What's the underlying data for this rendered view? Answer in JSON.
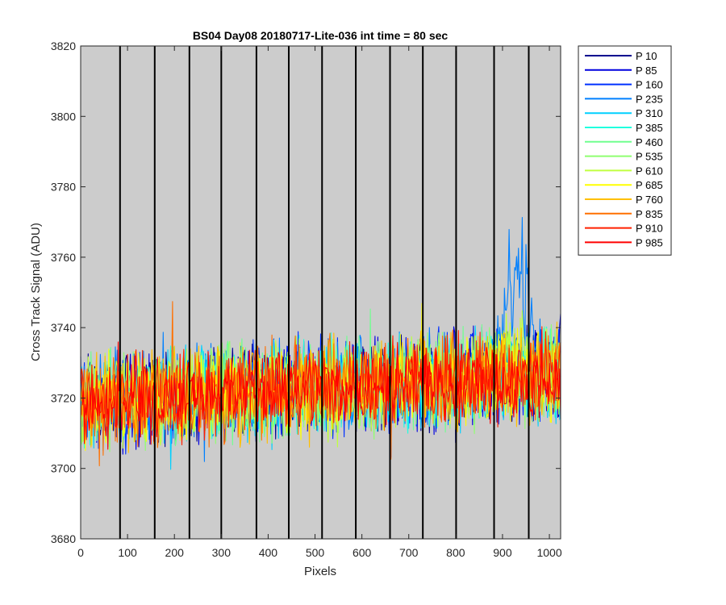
{
  "chart_data": {
    "type": "line",
    "title": "BS04 Day08 20180717-Lite-036 int time = 80 sec",
    "xlabel": "Pixels",
    "ylabel": "Cross Track Signal (ADU)",
    "xlim": [
      0,
      1024
    ],
    "ylim": [
      3680,
      3820
    ],
    "xticks": [
      0,
      100,
      200,
      300,
      400,
      500,
      600,
      700,
      800,
      900,
      1000
    ],
    "yticks": [
      3680,
      3700,
      3720,
      3740,
      3760,
      3780,
      3800,
      3820
    ],
    "background": "#cccccc",
    "grid": false,
    "legend_position": "outside-top-right",
    "segment_boundaries": [
      0,
      84,
      158,
      232,
      300,
      375,
      444,
      515,
      587,
      660,
      730,
      801,
      882,
      956,
      1024
    ],
    "series": [
      {
        "name": "P 10",
        "color": "#00008f",
        "baseline_left": 3718,
        "baseline_right": 3727,
        "noise_amplitude": 10
      },
      {
        "name": "P 85",
        "color": "#0000df",
        "baseline_left": 3718,
        "baseline_right": 3727,
        "noise_amplitude": 10
      },
      {
        "name": "P 160",
        "color": "#0030ff",
        "baseline_left": 3719,
        "baseline_right": 3728,
        "noise_amplitude": 10
      },
      {
        "name": "P 235",
        "color": "#0080ff",
        "baseline_left": 3719,
        "baseline_right": 3728,
        "noise_amplitude": 10,
        "bump": {
          "center": 930,
          "width": 32,
          "height": 45
        }
      },
      {
        "name": "P 310",
        "color": "#00d0ff",
        "baseline_left": 3719,
        "baseline_right": 3727,
        "noise_amplitude": 10
      },
      {
        "name": "P 385",
        "color": "#20ffdf",
        "baseline_left": 3719,
        "baseline_right": 3727,
        "noise_amplitude": 10
      },
      {
        "name": "P 460",
        "color": "#70ff8f",
        "baseline_left": 3719,
        "baseline_right": 3727,
        "noise_amplitude": 10
      },
      {
        "name": "P 535",
        "color": "#8fff70",
        "baseline_left": 3719,
        "baseline_right": 3727,
        "noise_amplitude": 10
      },
      {
        "name": "P 610",
        "color": "#c0ff40",
        "baseline_left": 3719,
        "baseline_right": 3727,
        "noise_amplitude": 10,
        "bump": {
          "center": 930,
          "width": 30,
          "height": 12
        }
      },
      {
        "name": "P 685",
        "color": "#ffff00",
        "baseline_left": 3719,
        "baseline_right": 3727,
        "noise_amplitude": 10
      },
      {
        "name": "P 760",
        "color": "#ffbf00",
        "baseline_left": 3719,
        "baseline_right": 3727,
        "noise_amplitude": 10
      },
      {
        "name": "P 835",
        "color": "#ff7000",
        "baseline_left": 3719,
        "baseline_right": 3727,
        "noise_amplitude": 10
      },
      {
        "name": "P 910",
        "color": "#ff2000",
        "baseline_left": 3719,
        "baseline_right": 3727,
        "noise_amplitude": 9
      },
      {
        "name": "P 985",
        "color": "#ff0000",
        "baseline_left": 3719,
        "baseline_right": 3726,
        "noise_amplitude": 8
      }
    ]
  }
}
